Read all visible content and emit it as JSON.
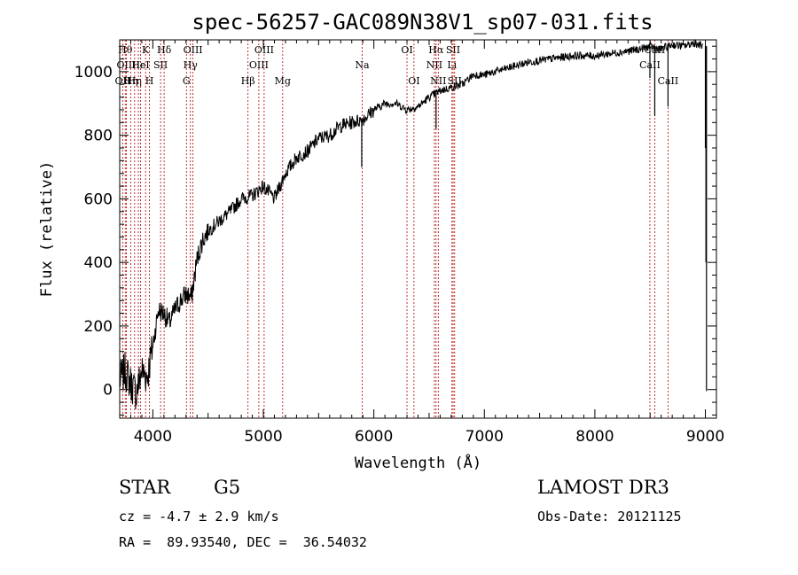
{
  "chart_data": {
    "type": "line",
    "title": "spec-56257-GAC089N38V1_sp07-031.fits",
    "xlabel": "Wavelength (Å)",
    "ylabel": "Flux (relative)",
    "xlim": [
      3700,
      9100
    ],
    "ylim": [
      -90,
      1100
    ],
    "xticks": [
      4000,
      5000,
      6000,
      7000,
      8000,
      9000
    ],
    "yticks": [
      0,
      200,
      400,
      600,
      800,
      1000
    ],
    "series": [
      {
        "name": "flux",
        "x": [
          3700,
          3750,
          3800,
          3850,
          3900,
          3950,
          4000,
          4050,
          4100,
          4150,
          4200,
          4250,
          4300,
          4350,
          4400,
          4450,
          4500,
          4600,
          4700,
          4800,
          4900,
          5000,
          5100,
          5200,
          5300,
          5400,
          5500,
          5600,
          5700,
          5800,
          5900,
          6000,
          6100,
          6200,
          6300,
          6400,
          6500,
          6600,
          6700,
          6800,
          6900,
          7000,
          7200,
          7400,
          7600,
          7800,
          8000,
          8200,
          8400,
          8500,
          8600,
          8700,
          8800,
          8900,
          8980
        ],
        "y": [
          30,
          60,
          20,
          -10,
          60,
          40,
          140,
          250,
          240,
          210,
          250,
          280,
          300,
          290,
          410,
          470,
          500,
          530,
          560,
          600,
          610,
          640,
          600,
          680,
          730,
          750,
          790,
          800,
          830,
          840,
          850,
          880,
          900,
          900,
          880,
          890,
          920,
          940,
          950,
          960,
          990,
          990,
          1010,
          1030,
          1040,
          1050,
          1050,
          1060,
          1070,
          1080,
          1070,
          1085,
          1080,
          1090,
          1080
        ]
      }
    ],
    "dips": [
      {
        "x": 5890,
        "y": 700
      },
      {
        "x": 6563,
        "y": 820
      },
      {
        "x": 8498,
        "y": 980
      },
      {
        "x": 8542,
        "y": 860
      },
      {
        "x": 8662,
        "y": 890
      },
      {
        "x": 9000,
        "y": 760
      },
      {
        "x": 9005,
        "y": 400
      },
      {
        "x": 9010,
        "y": -5
      }
    ],
    "lines": [
      {
        "x": 3727,
        "label": "OII",
        "row": 3
      },
      {
        "x": 3750,
        "label": "Hθ",
        "row": 1
      },
      {
        "x": 3760,
        "label": "OIII",
        "row": 2
      },
      {
        "x": 3800,
        "label": "Hη",
        "row": 3
      },
      {
        "x": 3835,
        "label": "Hη",
        "row": 3
      },
      {
        "x": 3869,
        "label": "Hε",
        "row": 2
      },
      {
        "x": 3889,
        "label": "HeI",
        "row": 2
      },
      {
        "x": 3934,
        "label": "K",
        "row": 1
      },
      {
        "x": 3969,
        "label": "H",
        "row": 3
      },
      {
        "x": 4070,
        "label": "SII",
        "row": 2
      },
      {
        "x": 4102,
        "label": "Hδ",
        "row": 1
      },
      {
        "x": 4304,
        "label": "G",
        "row": 3
      },
      {
        "x": 4340,
        "label": "Hγ",
        "row": 2
      },
      {
        "x": 4363,
        "label": "OIII",
        "row": 1
      },
      {
        "x": 4861,
        "label": "Hβ",
        "row": 3
      },
      {
        "x": 4959,
        "label": "OIII",
        "row": 2
      },
      {
        "x": 5007,
        "label": "OIII",
        "row": 1
      },
      {
        "x": 5175,
        "label": "Mg",
        "row": 3
      },
      {
        "x": 5894,
        "label": "Na",
        "row": 2
      },
      {
        "x": 6300,
        "label": "OI",
        "row": 1
      },
      {
        "x": 6363,
        "label": "OI",
        "row": 3
      },
      {
        "x": 6548,
        "label": "NII",
        "row": 2
      },
      {
        "x": 6563,
        "label": "Hα",
        "row": 1
      },
      {
        "x": 6583,
        "label": "NII",
        "row": 3
      },
      {
        "x": 6707,
        "label": "Li",
        "row": 2
      },
      {
        "x": 6717,
        "label": "SII",
        "row": 1
      },
      {
        "x": 6731,
        "label": "SII",
        "row": 3
      },
      {
        "x": 8498,
        "label": "CaII",
        "row": 2
      },
      {
        "x": 8542,
        "label": "CaII",
        "row": 1
      },
      {
        "x": 8662,
        "label": "CaII",
        "row": 3
      }
    ]
  },
  "info": {
    "class": "STAR",
    "subclass": "G5",
    "survey": "LAMOST DR3",
    "cz": "cz = -4.7 ± 2.9 km/s",
    "obs_date": "Obs-Date: 20121125",
    "coords": "RA =  89.93540, DEC =  36.54032"
  }
}
